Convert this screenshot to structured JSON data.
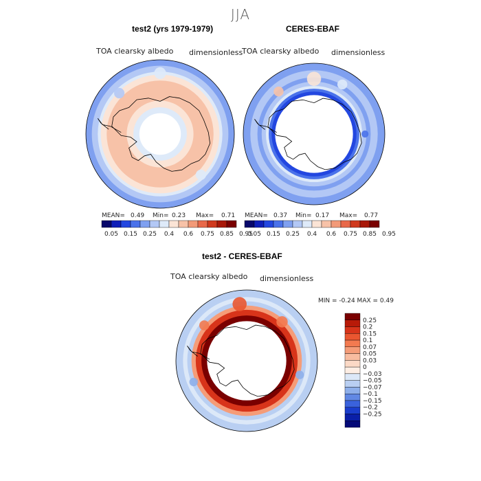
{
  "page": {
    "title": "JJA"
  },
  "panels": [
    {
      "title": "test2 (yrs 1979-1979)",
      "variable": "TOA clearsky albedo",
      "units": "dimensionless",
      "mean_label": "MEAN=",
      "mean": "0.49",
      "min_label": "Min=",
      "min": "0.23",
      "max_label": "Max=",
      "max": "0.71",
      "pattern": "model"
    },
    {
      "title": "CERES-EBAF",
      "variable": "TOA clearsky albedo",
      "units": "dimensionless",
      "mean_label": "MEAN=",
      "mean": "0.37",
      "min_label": "Min=",
      "min": "0.17",
      "max_label": "Max=",
      "max": "0.77",
      "pattern": "obs"
    },
    {
      "title": "test2 - CERES-EBAF",
      "variable": "TOA clearsky albedo",
      "units": "dimensionless",
      "minmax_text": "MIN =   -0.24  MAX =    0.49",
      "pattern": "diff"
    }
  ],
  "chart_data": [
    {
      "type": "heatmap",
      "title": "test2 (yrs 1979-1979)",
      "projection": "south-polar-stereographic",
      "variable": "TOA clearsky albedo",
      "units": "dimensionless",
      "stats": {
        "mean": 0.49,
        "min": 0.23,
        "max": 0.71
      },
      "levels": [
        "0.05",
        "0.15",
        "0.25",
        "0.4",
        "0.6",
        "0.75",
        "0.85",
        "0.95"
      ],
      "colors": [
        "#08086b",
        "#0f1fb8",
        "#2347e0",
        "#4a72ea",
        "#7fa0f0",
        "#b3c8f5",
        "#deeaf9",
        "#fbe4d6",
        "#f7c2a8",
        "#f29a78",
        "#e8694a",
        "#d03a1e",
        "#a81808",
        "#7a0000"
      ]
    },
    {
      "type": "heatmap",
      "title": "CERES-EBAF",
      "projection": "south-polar-stereographic",
      "variable": "TOA clearsky albedo",
      "units": "dimensionless",
      "stats": {
        "mean": 0.37,
        "min": 0.17,
        "max": 0.77
      },
      "levels": [
        "0.05",
        "0.15",
        "0.25",
        "0.4",
        "0.6",
        "0.75",
        "0.85",
        "0.95"
      ],
      "colors": [
        "#08086b",
        "#0f1fb8",
        "#2347e0",
        "#4a72ea",
        "#7fa0f0",
        "#b3c8f5",
        "#deeaf9",
        "#fbe4d6",
        "#f7c2a8",
        "#f29a78",
        "#e8694a",
        "#d03a1e",
        "#a81808",
        "#7a0000"
      ]
    },
    {
      "type": "heatmap",
      "title": "test2 - CERES-EBAF",
      "projection": "south-polar-stereographic",
      "variable": "TOA clearsky albedo",
      "units": "dimensionless",
      "stats": {
        "min": -0.24,
        "max": 0.49
      },
      "levels": [
        "0.25",
        "0.2",
        "0.15",
        "0.1",
        "0.07",
        "0.05",
        "0.03",
        "0",
        "−0.03",
        "−0.05",
        "−0.07",
        "−0.1",
        "−0.15",
        "−0.2",
        "−0.25"
      ],
      "colors": [
        "#7a0000",
        "#b81a08",
        "#d8341a",
        "#ea5630",
        "#f37a50",
        "#f59c78",
        "#f8bca0",
        "#fbd9c6",
        "#fdeee4",
        "#dce8f8",
        "#b9cff2",
        "#8eafea",
        "#6188e4",
        "#3a62dc",
        "#1a3dcc",
        "#0a1fa8",
        "#040a78"
      ]
    }
  ],
  "colors": {
    "land_outline": "#000000",
    "map_border": "#000000"
  }
}
